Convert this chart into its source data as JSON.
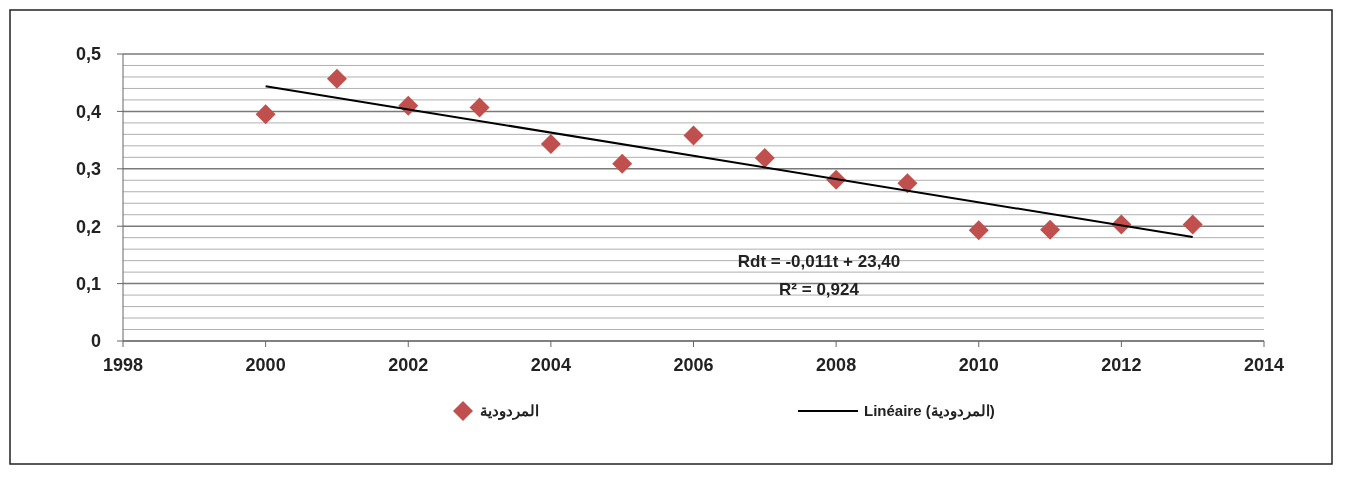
{
  "chart_data": {
    "type": "scatter",
    "x": [
      2000,
      2001,
      2002,
      2003,
      2004,
      2005,
      2006,
      2007,
      2008,
      2009,
      2010,
      2011,
      2012,
      2013
    ],
    "series": [
      {
        "name": "المردودية",
        "color": "#c0504d",
        "marker": "diamond",
        "values": [
          0.395,
          0.457,
          0.41,
          0.407,
          0.343,
          0.309,
          0.358,
          0.319,
          0.281,
          0.275,
          0.193,
          0.194,
          0.203,
          0.203
        ]
      },
      {
        "name": "Linéaire (المردودية)",
        "type": "line",
        "color": "#000000",
        "line_style": "solid",
        "x": [
          2000,
          2013
        ],
        "values": [
          0.444,
          0.181
        ]
      }
    ],
    "xlim": [
      1998,
      2014
    ],
    "xticks": [
      1998,
      2000,
      2002,
      2004,
      2006,
      2008,
      2010,
      2012,
      2014
    ],
    "ylim": [
      0,
      0.5
    ],
    "yticks": [
      0,
      {
        "value": 0.02,
        "label": null
      },
      {
        "value": 0.04,
        "label": null
      },
      {
        "value": 0.06,
        "label": null
      },
      {
        "value": 0.08,
        "label": null
      },
      {
        "value": 0.1,
        "label": "0,1"
      },
      {
        "value": 0.12,
        "label": null
      },
      {
        "value": 0.14,
        "label": null
      },
      {
        "value": 0.16,
        "label": null
      },
      {
        "value": 0.18,
        "label": null
      },
      {
        "value": 0.2,
        "label": "0,2"
      },
      {
        "value": 0.22,
        "label": null
      },
      {
        "value": 0.24,
        "label": null
      },
      {
        "value": 0.26,
        "label": null
      },
      {
        "value": 0.28,
        "label": null
      },
      {
        "value": 0.3,
        "label": "0,3"
      },
      {
        "value": 0.32,
        "label": null
      },
      {
        "value": 0.34,
        "label": null
      },
      {
        "value": 0.36,
        "label": null
      },
      {
        "value": 0.38,
        "label": null
      },
      {
        "value": 0.4,
        "label": "0,4"
      },
      {
        "value": 0.42,
        "label": null
      },
      {
        "value": 0.44,
        "label": null
      },
      {
        "value": 0.46,
        "label": null
      },
      {
        "value": 0.48,
        "label": null
      },
      {
        "value": 0.5,
        "label": "0,5"
      }
    ],
    "grid": "y",
    "legend": "bottom",
    "annotations": [
      "Rdt = -0,011t + 23,40",
      "R² = 0,924"
    ]
  }
}
